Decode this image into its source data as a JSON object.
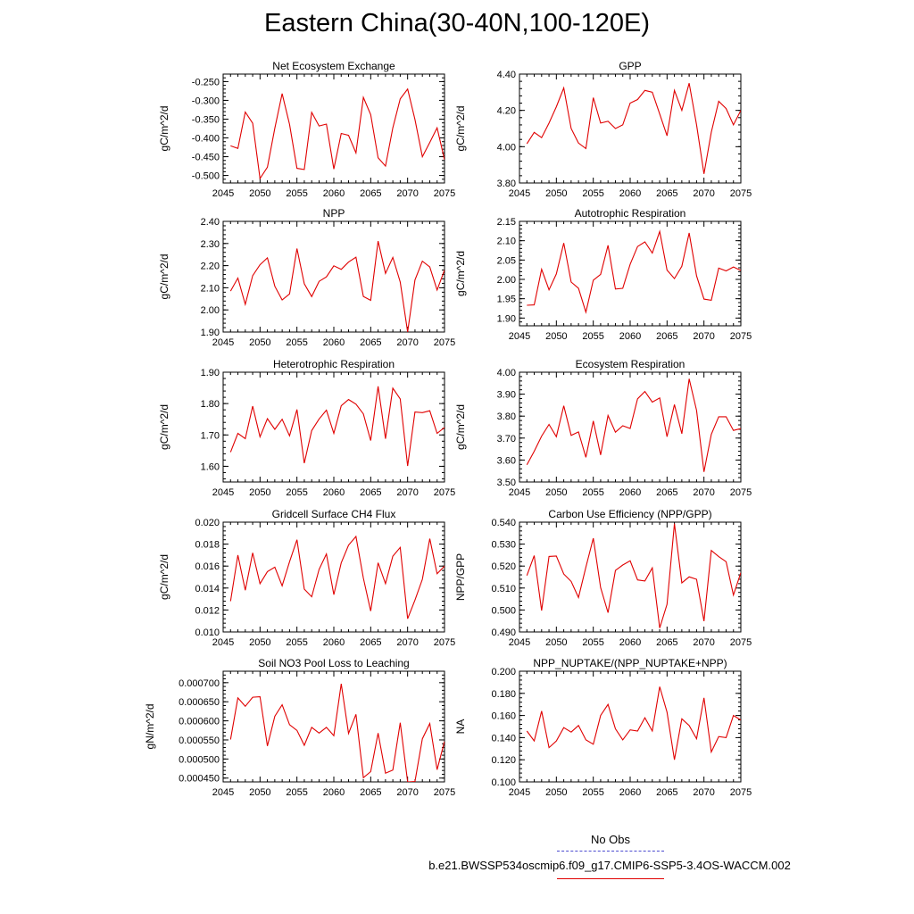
{
  "title": "Eastern China(30-40N,100-120E)",
  "legend": {
    "obs_label": "No Obs",
    "case_label": "b.e21.BWSSP534oscmip6.f09_g17.CMIP6-SSP5-3.4OS-WACCM.002",
    "series_color": "#e00000",
    "obs_color": "#4a4ad0"
  },
  "chart_data": [
    {
      "type": "line",
      "title": "Net Ecosystem Exchange",
      "ylabel": "gC/m^2/d",
      "xlim": [
        2045,
        2075
      ],
      "ylim": [
        -0.52,
        -0.23
      ],
      "xticks": [
        "2045",
        "2050",
        "2055",
        "2060",
        "2065",
        "2070",
        "2075"
      ],
      "yticks": [
        "-0.500",
        "-0.450",
        "-0.400",
        "-0.350",
        "-0.300",
        "-0.250"
      ],
      "x": [
        2046,
        2047,
        2048,
        2049,
        2050,
        2051,
        2052,
        2053,
        2054,
        2055,
        2056,
        2057,
        2058,
        2059,
        2060,
        2061,
        2062,
        2063,
        2064,
        2065,
        2066,
        2067,
        2068,
        2069,
        2070,
        2071,
        2072,
        2073,
        2074,
        2075
      ],
      "series": [
        {
          "values": [
            -0.421,
            -0.428,
            -0.331,
            -0.361,
            -0.508,
            -0.478,
            -0.374,
            -0.282,
            -0.364,
            -0.481,
            -0.484,
            -0.332,
            -0.368,
            -0.363,
            -0.483,
            -0.388,
            -0.393,
            -0.44,
            -0.292,
            -0.338,
            -0.453,
            -0.475,
            -0.373,
            -0.296,
            -0.27,
            -0.351,
            -0.45,
            -0.412,
            -0.373,
            -0.458
          ]
        }
      ]
    },
    {
      "type": "line",
      "title": "GPP",
      "ylabel": "gC/m^2/d",
      "xlim": [
        2045,
        2075
      ],
      "ylim": [
        3.8,
        4.4
      ],
      "xticks": [
        "2045",
        "2050",
        "2055",
        "2060",
        "2065",
        "2070",
        "2075"
      ],
      "yticks": [
        "3.80",
        "4.00",
        "4.20",
        "4.40"
      ],
      "x": [
        2046,
        2047,
        2048,
        2049,
        2050,
        2051,
        2052,
        2053,
        2054,
        2055,
        2056,
        2057,
        2058,
        2059,
        2060,
        2061,
        2062,
        2063,
        2064,
        2065,
        2066,
        2067,
        2068,
        2069,
        2070,
        2071,
        2072,
        2073,
        2074,
        2075
      ],
      "series": [
        {
          "values": [
            4.016,
            4.079,
            4.05,
            4.13,
            4.22,
            4.324,
            4.1,
            4.02,
            3.99,
            4.27,
            4.13,
            4.14,
            4.1,
            4.12,
            4.24,
            4.26,
            4.31,
            4.3,
            4.18,
            4.06,
            4.31,
            4.2,
            4.35,
            4.12,
            3.85,
            4.08,
            4.25,
            4.21,
            4.12,
            4.2
          ]
        }
      ]
    },
    {
      "type": "line",
      "title": "NPP",
      "ylabel": "gC/m^2/d",
      "xlim": [
        2045,
        2075
      ],
      "ylim": [
        1.9,
        2.4
      ],
      "xticks": [
        "2045",
        "2050",
        "2055",
        "2060",
        "2065",
        "2070",
        "2075"
      ],
      "yticks": [
        "1.90",
        "2.00",
        "2.10",
        "2.20",
        "2.30",
        "2.40"
      ],
      "x": [
        2046,
        2047,
        2048,
        2049,
        2050,
        2051,
        2052,
        2053,
        2054,
        2055,
        2056,
        2057,
        2058,
        2059,
        2060,
        2061,
        2062,
        2063,
        2064,
        2065,
        2066,
        2067,
        2068,
        2069,
        2070,
        2071,
        2072,
        2073,
        2074,
        2075
      ],
      "series": [
        {
          "values": [
            2.085,
            2.144,
            2.025,
            2.155,
            2.204,
            2.235,
            2.107,
            2.045,
            2.072,
            2.277,
            2.118,
            2.06,
            2.129,
            2.149,
            2.199,
            2.183,
            2.216,
            2.238,
            2.061,
            2.043,
            2.311,
            2.165,
            2.237,
            2.126,
            1.9,
            2.135,
            2.22,
            2.194,
            2.09,
            2.18
          ]
        }
      ]
    },
    {
      "type": "line",
      "title": "Autotrophic Respiration",
      "ylabel": "gC/m^2/d",
      "xlim": [
        2045,
        2075
      ],
      "ylim": [
        1.88,
        2.15
      ],
      "xticks": [
        "2045",
        "2050",
        "2055",
        "2060",
        "2065",
        "2070",
        "2075"
      ],
      "yticks": [
        "1.90",
        "1.95",
        "2.00",
        "2.05",
        "2.10",
        "2.15"
      ],
      "x": [
        2046,
        2047,
        2048,
        2049,
        2050,
        2051,
        2052,
        2053,
        2054,
        2055,
        2056,
        2057,
        2058,
        2059,
        2060,
        2061,
        2062,
        2063,
        2064,
        2065,
        2066,
        2067,
        2068,
        2069,
        2070,
        2071,
        2072,
        2073,
        2074,
        2075
      ],
      "series": [
        {
          "values": [
            1.933,
            1.934,
            2.026,
            1.973,
            2.014,
            2.094,
            1.993,
            1.977,
            1.915,
            1.998,
            2.013,
            2.088,
            1.975,
            1.977,
            2.039,
            2.085,
            2.097,
            2.068,
            2.124,
            2.024,
            2.002,
            2.034,
            2.12,
            2.009,
            1.949,
            1.946,
            2.029,
            2.022,
            2.032,
            2.023
          ]
        }
      ]
    },
    {
      "type": "line",
      "title": "Heterotrophic Respiration",
      "ylabel": "gC/m^2/d",
      "xlim": [
        2045,
        2075
      ],
      "ylim": [
        1.55,
        1.9
      ],
      "xticks": [
        "2045",
        "2050",
        "2055",
        "2060",
        "2065",
        "2070",
        "2075"
      ],
      "yticks": [
        "1.60",
        "1.70",
        "1.80",
        "1.90"
      ],
      "x": [
        2046,
        2047,
        2048,
        2049,
        2050,
        2051,
        2052,
        2053,
        2054,
        2055,
        2056,
        2057,
        2058,
        2059,
        2060,
        2061,
        2062,
        2063,
        2064,
        2065,
        2066,
        2067,
        2068,
        2069,
        2070,
        2071,
        2072,
        2073,
        2074,
        2075
      ],
      "series": [
        {
          "values": [
            1.645,
            1.705,
            1.688,
            1.792,
            1.694,
            1.752,
            1.718,
            1.75,
            1.697,
            1.781,
            1.61,
            1.714,
            1.751,
            1.779,
            1.705,
            1.793,
            1.813,
            1.798,
            1.767,
            1.682,
            1.855,
            1.688,
            1.849,
            1.815,
            1.601,
            1.773,
            1.771,
            1.777,
            1.705,
            1.724
          ]
        }
      ]
    },
    {
      "type": "line",
      "title": "Ecosystem Respiration",
      "ylabel": "gC/m^2/d",
      "xlim": [
        2045,
        2075
      ],
      "ylim": [
        3.5,
        4.0
      ],
      "xticks": [
        "2045",
        "2050",
        "2055",
        "2060",
        "2065",
        "2070",
        "2075"
      ],
      "yticks": [
        "3.50",
        "3.60",
        "3.70",
        "3.80",
        "3.90",
        "4.00"
      ],
      "x": [
        2046,
        2047,
        2048,
        2049,
        2050,
        2051,
        2052,
        2053,
        2054,
        2055,
        2056,
        2057,
        2058,
        2059,
        2060,
        2061,
        2062,
        2063,
        2064,
        2065,
        2066,
        2067,
        2068,
        2069,
        2070,
        2071,
        2072,
        2073,
        2074,
        2075
      ],
      "series": [
        {
          "values": [
            3.578,
            3.64,
            3.709,
            3.762,
            3.706,
            3.847,
            3.712,
            3.728,
            3.612,
            3.778,
            3.623,
            3.803,
            3.727,
            3.756,
            3.744,
            3.879,
            3.912,
            3.864,
            3.883,
            3.706,
            3.853,
            3.72,
            3.97,
            3.826,
            3.546,
            3.717,
            3.797,
            3.797,
            3.735,
            3.743
          ]
        }
      ]
    },
    {
      "type": "line",
      "title": "Gridcell Surface CH4 Flux",
      "ylabel": "gC/m^2/d",
      "xlim": [
        2045,
        2075
      ],
      "ylim": [
        0.01,
        0.02
      ],
      "xticks": [
        "2045",
        "2050",
        "2055",
        "2060",
        "2065",
        "2070",
        "2075"
      ],
      "yticks": [
        "0.010",
        "0.012",
        "0.014",
        "0.016",
        "0.018",
        "0.020"
      ],
      "x": [
        2046,
        2047,
        2048,
        2049,
        2050,
        2051,
        2052,
        2053,
        2054,
        2055,
        2056,
        2057,
        2058,
        2059,
        2060,
        2061,
        2062,
        2063,
        2064,
        2065,
        2066,
        2067,
        2068,
        2069,
        2070,
        2071,
        2072,
        2073,
        2074,
        2075
      ],
      "series": [
        {
          "values": [
            0.0128,
            0.017,
            0.0138,
            0.0172,
            0.0144,
            0.0155,
            0.0159,
            0.0142,
            0.0164,
            0.0184,
            0.0139,
            0.0132,
            0.0157,
            0.0171,
            0.0134,
            0.0163,
            0.0179,
            0.0187,
            0.0149,
            0.0119,
            0.0163,
            0.0144,
            0.0169,
            0.0177,
            0.0112,
            0.0129,
            0.0148,
            0.0185,
            0.0153,
            0.016
          ]
        }
      ]
    },
    {
      "type": "line",
      "title": "Carbon Use Efficiency (NPP/GPP)",
      "ylabel": "NPP/GPP",
      "xlim": [
        2045,
        2075
      ],
      "ylim": [
        0.49,
        0.54
      ],
      "xticks": [
        "2045",
        "2050",
        "2055",
        "2060",
        "2065",
        "2070",
        "2075"
      ],
      "yticks": [
        "0.490",
        "0.500",
        "0.510",
        "0.520",
        "0.530",
        "0.540"
      ],
      "x": [
        2046,
        2047,
        2048,
        2049,
        2050,
        2051,
        2052,
        2053,
        2054,
        2055,
        2056,
        2057,
        2058,
        2059,
        2060,
        2061,
        2062,
        2063,
        2064,
        2065,
        2066,
        2067,
        2068,
        2069,
        2070,
        2071,
        2072,
        2073,
        2074,
        2075
      ],
      "series": [
        {
          "values": [
            0.5157,
            0.5248,
            0.4997,
            0.5244,
            0.5246,
            0.5164,
            0.513,
            0.5057,
            0.5195,
            0.5327,
            0.5102,
            0.4988,
            0.518,
            0.5205,
            0.5224,
            0.5137,
            0.5132,
            0.5192,
            0.4918,
            0.5026,
            0.5393,
            0.5123,
            0.5151,
            0.514,
            0.4949,
            0.5271,
            0.5243,
            0.522,
            0.5068,
            0.517
          ]
        }
      ]
    },
    {
      "type": "line",
      "title": "Soil NO3 Pool Loss to Leaching",
      "ylabel": "gN/m^2/d",
      "xlim": [
        2045,
        2075
      ],
      "ylim": [
        0.00044,
        0.00073
      ],
      "xticks": [
        "2045",
        "2050",
        "2055",
        "2060",
        "2065",
        "2070",
        "2075"
      ],
      "yticks": [
        "0.000450",
        "0.000500",
        "0.000550",
        "0.000600",
        "0.000650",
        "0.000700"
      ],
      "x": [
        2046,
        2047,
        2048,
        2049,
        2050,
        2051,
        2052,
        2053,
        2054,
        2055,
        2056,
        2057,
        2058,
        2059,
        2060,
        2061,
        2062,
        2063,
        2064,
        2065,
        2066,
        2067,
        2068,
        2069,
        2070,
        2071,
        2072,
        2073,
        2074,
        2075
      ],
      "series": [
        {
          "values": [
            0.000551,
            0.00066,
            0.000638,
            0.000662,
            0.000663,
            0.000534,
            0.000612,
            0.000642,
            0.00059,
            0.000575,
            0.000536,
            0.000583,
            0.000568,
            0.000583,
            0.000561,
            0.000697,
            0.000567,
            0.000617,
            0.000451,
            0.000467,
            0.000568,
            0.000463,
            0.000471,
            0.000595,
            0.00044,
            0.000441,
            0.000553,
            0.000593,
            0.000472,
            0.000546
          ]
        }
      ]
    },
    {
      "type": "line",
      "title": "NPP_NUPTAKE/(NPP_NUPTAKE+NPP)",
      "ylabel": "NA",
      "xlim": [
        2045,
        2075
      ],
      "ylim": [
        0.1,
        0.2
      ],
      "xticks": [
        "2045",
        "2050",
        "2055",
        "2060",
        "2065",
        "2070",
        "2075"
      ],
      "yticks": [
        "0.100",
        "0.120",
        "0.140",
        "0.160",
        "0.180",
        "0.200"
      ],
      "x": [
        2046,
        2047,
        2048,
        2049,
        2050,
        2051,
        2052,
        2053,
        2054,
        2055,
        2056,
        2057,
        2058,
        2059,
        2060,
        2061,
        2062,
        2063,
        2064,
        2065,
        2066,
        2067,
        2068,
        2069,
        2070,
        2071,
        2072,
        2073,
        2074,
        2075
      ],
      "series": [
        {
          "values": [
            0.146,
            0.137,
            0.164,
            0.131,
            0.137,
            0.149,
            0.145,
            0.151,
            0.138,
            0.134,
            0.16,
            0.17,
            0.148,
            0.138,
            0.147,
            0.146,
            0.158,
            0.146,
            0.186,
            0.163,
            0.12,
            0.157,
            0.151,
            0.139,
            0.176,
            0.127,
            0.141,
            0.14,
            0.16,
            0.156
          ]
        }
      ]
    }
  ]
}
